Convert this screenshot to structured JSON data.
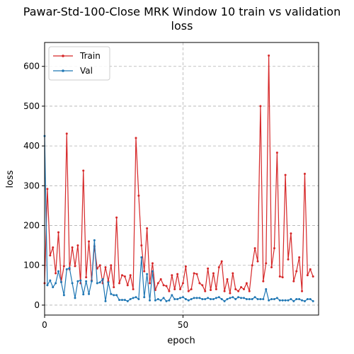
{
  "chart_data": {
    "type": "line",
    "title_lines": [
      "Pawar-Std-100-Close MRK Window 10 train vs validation",
      "loss"
    ],
    "xlabel": "epoch",
    "ylabel": "loss",
    "xlim": [
      0,
      99
    ],
    "ylim": [
      -25,
      660
    ],
    "xticks": [
      0,
      50
    ],
    "yticks": [
      0,
      100,
      200,
      300,
      400,
      500,
      600
    ],
    "grid": true,
    "legend_position": "upper-left",
    "series": [
      {
        "name": "Train",
        "color": "#d62728",
        "values": [
          55,
          292,
          125,
          145,
          80,
          183,
          58,
          98,
          431,
          90,
          145,
          98,
          150,
          55,
          338,
          70,
          160,
          62,
          148,
          92,
          100,
          55,
          95,
          60,
          100,
          45,
          220,
          55,
          75,
          72,
          50,
          75,
          40,
          420,
          275,
          150,
          85,
          193,
          55,
          105,
          38,
          55,
          65,
          50,
          48,
          35,
          75,
          40,
          78,
          40,
          55,
          97,
          35,
          40,
          80,
          78,
          55,
          50,
          35,
          92,
          38,
          80,
          40,
          95,
          110,
          35,
          65,
          30,
          80,
          40,
          35,
          45,
          40,
          55,
          35,
          100,
          143,
          110,
          500,
          60,
          105,
          627,
          95,
          143,
          383,
          72,
          70,
          327,
          115,
          180,
          60,
          85,
          120,
          35,
          330,
          75,
          90,
          72
        ]
      },
      {
        "name": "Val",
        "color": "#1f77b4",
        "values": [
          425,
          50,
          62,
          45,
          55,
          85,
          58,
          25,
          90,
          93,
          55,
          18,
          60,
          62,
          27,
          60,
          28,
          60,
          163,
          55,
          57,
          65,
          10,
          57,
          28,
          25,
          25,
          13,
          13,
          13,
          10,
          15,
          18,
          20,
          15,
          120,
          20,
          78,
          12,
          85,
          12,
          15,
          12,
          18,
          10,
          12,
          25,
          15,
          15,
          18,
          20,
          15,
          12,
          15,
          18,
          18,
          18,
          15,
          15,
          18,
          15,
          15,
          18,
          20,
          15,
          10,
          15,
          18,
          20,
          15,
          20,
          18,
          18,
          15,
          15,
          15,
          20,
          15,
          15,
          15,
          40,
          12,
          15,
          15,
          18,
          12,
          12,
          12,
          12,
          15,
          10,
          15,
          15,
          12,
          10,
          15,
          15,
          10
        ]
      }
    ]
  }
}
